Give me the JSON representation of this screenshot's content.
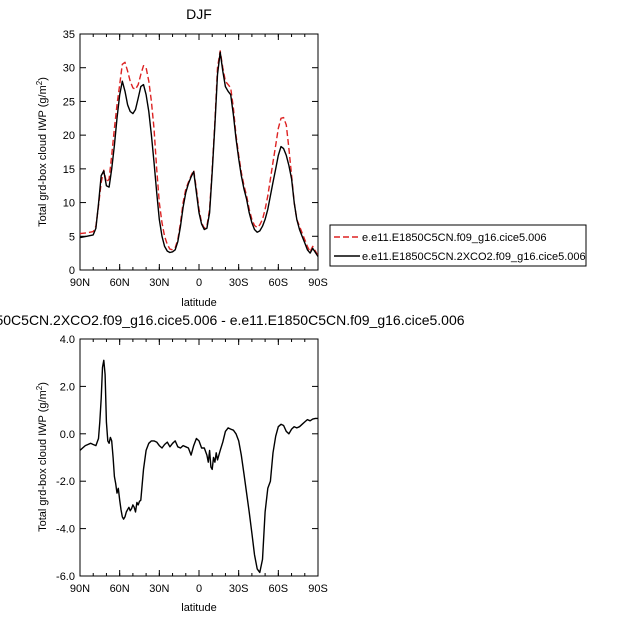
{
  "chart_data": [
    {
      "type": "line",
      "title": "DJF",
      "xlabel": "latitude",
      "ylabel": "Total grd-box cloud IWP (g/m",
      "ylabel_sup": "2",
      "ylabel_close": ")",
      "xlim": [
        90,
        -90
      ],
      "ylim": [
        0,
        35
      ],
      "xticks": [
        90,
        60,
        30,
        0,
        -30,
        -60,
        -90
      ],
      "xtick_labels": [
        "90N",
        "60N",
        "30N",
        "0",
        "30S",
        "60S",
        "90S"
      ],
      "yticks": [
        0,
        5,
        10,
        15,
        20,
        25,
        30,
        35
      ],
      "ytick_labels": [
        "0",
        "5",
        "10",
        "15",
        "20",
        "25",
        "30",
        "35"
      ],
      "legend_position": "right",
      "series": [
        {
          "name": "e.e11.E1850C5CN.f09_g16.cice5.006",
          "color": "#dd2222",
          "dash": "dashed",
          "x": [
            90,
            85,
            80,
            78,
            76,
            74,
            72,
            70,
            68,
            66,
            64,
            62,
            60,
            58,
            56,
            54,
            52,
            50,
            48,
            46,
            44,
            42,
            40,
            38,
            36,
            34,
            32,
            30,
            28,
            26,
            24,
            22,
            20,
            18,
            16,
            14,
            12,
            10,
            8,
            6,
            4,
            2,
            0,
            -2,
            -4,
            -6,
            -8,
            -10,
            -12,
            -14,
            -16,
            -18,
            -20,
            -22,
            -24,
            -26,
            -28,
            -30,
            -32,
            -34,
            -36,
            -38,
            -40,
            -42,
            -44,
            -46,
            -48,
            -50,
            -52,
            -54,
            -56,
            -58,
            -60,
            -62,
            -64,
            -66,
            -68,
            -70,
            -72,
            -74,
            -76,
            -78,
            -80,
            -82,
            -84,
            -86,
            -88,
            -90
          ],
          "y": [
            5.4,
            5.5,
            5.7,
            6.5,
            9.5,
            13,
            14.8,
            13,
            13.5,
            17,
            21,
            24.5,
            27.5,
            30.5,
            30.8,
            29.5,
            28,
            27,
            26.8,
            27.5,
            29,
            30.3,
            30,
            28,
            25,
            21,
            15,
            10,
            7,
            5,
            3.8,
            3.1,
            3,
            3.3,
            4.5,
            7,
            10,
            12,
            13,
            14,
            14.8,
            12,
            9,
            7,
            6.2,
            6.5,
            9,
            15,
            22,
            30,
            32.5,
            30,
            28,
            27.5,
            27,
            24,
            20,
            17,
            14.5,
            12.5,
            11,
            9,
            7.5,
            6.6,
            6.3,
            6.7,
            7.5,
            9,
            11,
            13.5,
            16,
            18.5,
            21,
            22.5,
            22.6,
            21.5,
            18,
            14,
            10,
            7.5,
            6.5,
            5.5,
            4.5,
            3.5,
            2.7,
            3.5,
            2.8,
            2.1
          ]
        },
        {
          "name": "e.e11.E1850C5CN.2XCO2.f09_g16.cice5.006",
          "color": "#000000",
          "dash": "solid",
          "x": [
            90,
            85,
            80,
            78,
            76,
            74,
            72,
            70,
            68,
            66,
            64,
            62,
            60,
            58,
            56,
            54,
            52,
            50,
            48,
            46,
            44,
            42,
            40,
            38,
            36,
            34,
            32,
            30,
            28,
            26,
            24,
            22,
            20,
            18,
            16,
            14,
            12,
            10,
            8,
            6,
            4,
            2,
            0,
            -2,
            -4,
            -6,
            -8,
            -10,
            -12,
            -14,
            -16,
            -18,
            -20,
            -22,
            -24,
            -26,
            -28,
            -30,
            -32,
            -34,
            -36,
            -38,
            -40,
            -42,
            -44,
            -46,
            -48,
            -50,
            -52,
            -54,
            -56,
            -58,
            -60,
            -62,
            -64,
            -66,
            -68,
            -70,
            -72,
            -74,
            -76,
            -78,
            -80,
            -82,
            -84,
            -86,
            -88,
            -90
          ],
          "y": [
            4.8,
            5,
            5.2,
            6.2,
            9.8,
            14,
            14.7,
            12.5,
            12.3,
            15,
            18.5,
            22.5,
            26,
            28,
            26.5,
            24.5,
            23.5,
            23.2,
            23.8,
            25.5,
            27.2,
            27.5,
            26,
            23.5,
            20,
            16,
            11.5,
            7.5,
            5,
            3.5,
            2.8,
            2.6,
            2.7,
            3,
            4.2,
            6.5,
            9.3,
            11.5,
            12.8,
            13.8,
            14.6,
            11.5,
            8.5,
            6.8,
            6,
            6.2,
            8.5,
            14.5,
            21.5,
            29,
            32.3,
            29.5,
            27.2,
            26.5,
            26,
            23,
            19.5,
            16.5,
            14,
            12,
            10.5,
            8.5,
            7,
            6,
            5.6,
            5.8,
            6.5,
            7.5,
            9,
            11,
            13,
            15,
            17,
            18.3,
            18,
            17,
            15.5,
            13.5,
            10,
            7.5,
            6,
            5,
            4,
            3,
            2.5,
            3.2,
            2.6,
            2
          ]
        }
      ]
    },
    {
      "type": "line",
      "title": "50C5CN.2XCO2.f09_g16.cice5.006 - e.e11.E1850C5CN.f09_g16.cice5.006",
      "xlabel": "latitude",
      "ylabel": "Total grd-box cloud IWP (g/m",
      "ylabel_sup": "2",
      "ylabel_close": ")",
      "xlim": [
        90,
        -90
      ],
      "ylim": [
        -6,
        4
      ],
      "xticks": [
        90,
        60,
        30,
        0,
        -30,
        -60,
        -90
      ],
      "xtick_labels": [
        "90N",
        "60N",
        "30N",
        "0",
        "30S",
        "60S",
        "90S"
      ],
      "yticks": [
        -6,
        -4,
        -2,
        0,
        2,
        4
      ],
      "ytick_labels": [
        "-6.0",
        "-4.0",
        "-2.0",
        "0.0",
        "2.0",
        "4.0"
      ],
      "series": [
        {
          "color": "#000000",
          "dash": "solid",
          "x": [
            90,
            88,
            86,
            84,
            82,
            80,
            78,
            76,
            75,
            74,
            73,
            72,
            71,
            70,
            69,
            68,
            67,
            66,
            65,
            64,
            63,
            62,
            61,
            60,
            59,
            58,
            57,
            56,
            55,
            54,
            53,
            52,
            51,
            50,
            49,
            48,
            47,
            46,
            45,
            44,
            42,
            40,
            38,
            36,
            34,
            32,
            30,
            28,
            26,
            24,
            22,
            20,
            18,
            16,
            14,
            12,
            10,
            8,
            6,
            4,
            2,
            0,
            -2,
            -4,
            -6,
            -7,
            -8,
            -9,
            -10,
            -11,
            -12,
            -13,
            -14,
            -16,
            -18,
            -20,
            -22,
            -24,
            -26,
            -28,
            -30,
            -32,
            -34,
            -36,
            -38,
            -40,
            -42,
            -44,
            -46,
            -48,
            -50,
            -52,
            -54,
            -56,
            -58,
            -60,
            -62,
            -64,
            -66,
            -68,
            -70,
            -72,
            -74,
            -76,
            -78,
            -80,
            -82,
            -84,
            -86,
            -88,
            -90
          ],
          "y": [
            -0.7,
            -0.6,
            -0.5,
            -0.45,
            -0.4,
            -0.45,
            -0.5,
            -0.2,
            0.5,
            1.5,
            2.8,
            3.1,
            2.5,
            0.5,
            -0.3,
            -0.4,
            -0.15,
            -0.3,
            -1.0,
            -1.8,
            -2.1,
            -2.5,
            -2.3,
            -2.8,
            -3.2,
            -3.5,
            -3.6,
            -3.5,
            -3.3,
            -3.2,
            -3.1,
            -3.25,
            -3.15,
            -3.0,
            -3.1,
            -3.3,
            -2.9,
            -3.0,
            -2.85,
            -2.8,
            -1.5,
            -0.7,
            -0.4,
            -0.3,
            -0.3,
            -0.35,
            -0.5,
            -0.6,
            -0.45,
            -0.35,
            -0.55,
            -0.4,
            -0.3,
            -0.55,
            -0.6,
            -0.5,
            -0.55,
            -0.6,
            -0.9,
            -0.5,
            -0.2,
            -0.3,
            -0.6,
            -0.6,
            -0.9,
            -1.2,
            -0.7,
            -1.4,
            -1.5,
            -1.0,
            -1.2,
            -0.8,
            -1.1,
            -0.7,
            -0.35,
            0.1,
            0.25,
            0.2,
            0.15,
            0.0,
            -0.3,
            -0.9,
            -1.7,
            -2.5,
            -3.3,
            -4.2,
            -5.1,
            -5.7,
            -5.85,
            -5.3,
            -3.3,
            -2.3,
            -2.0,
            -0.8,
            -0.1,
            0.3,
            0.4,
            0.35,
            0.1,
            0.0,
            0.2,
            0.3,
            0.25,
            0.3,
            0.4,
            0.5,
            0.6,
            0.55,
            0.62,
            0.65,
            0.65
          ]
        }
      ]
    }
  ]
}
